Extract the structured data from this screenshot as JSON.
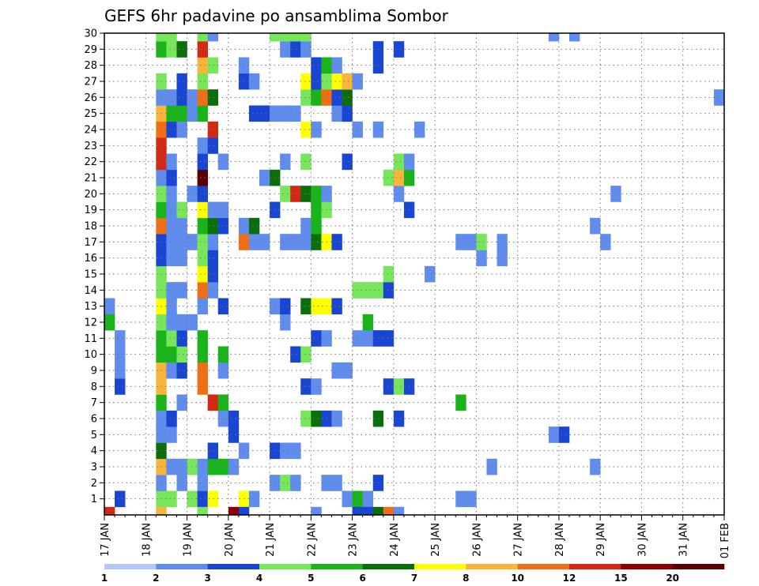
{
  "chart_data": {
    "type": "heatmap",
    "title": "GEFS 6hr padavine po ansamblima Sombor",
    "xlabel": "",
    "ylabel": "",
    "x_ticks": [
      "17 JAN",
      "18 JAN",
      "19 JAN",
      "20 JAN",
      "21 JAN",
      "22 JAN",
      "23 JAN",
      "24 JAN",
      "25 JAN",
      "26 JAN",
      "27 JAN",
      "28 JAN",
      "29 JAN",
      "30 JAN",
      "31 JAN",
      "01 FEB"
    ],
    "y_ticks": [
      1,
      2,
      3,
      4,
      5,
      6,
      7,
      8,
      9,
      10,
      11,
      12,
      13,
      14,
      15,
      16,
      17,
      18,
      19,
      20,
      21,
      22,
      23,
      24,
      25,
      26,
      27,
      28,
      29,
      30
    ],
    "xlim": [
      0,
      60
    ],
    "ylim": [
      0,
      30
    ],
    "x_unit": "6-hour steps from 17 JAN 00Z",
    "grid": true,
    "colorbar": {
      "position": "bottom",
      "labels": [
        "1",
        "2",
        "3",
        "4",
        "5",
        "6",
        "7",
        "8",
        "10",
        "12",
        "15",
        "20"
      ],
      "colors": [
        "#b4c8f5",
        "#5f8ced",
        "#1846d2",
        "#78e65a",
        "#19b419",
        "#0a6e0a",
        "#ffff00",
        "#fab43c",
        "#f06e14",
        "#d22814",
        "#8c0000",
        "#5a0000"
      ]
    },
    "cells": [
      [
        1,
        1,
        2
      ],
      [
        5,
        1,
        3
      ],
      [
        6,
        1,
        3
      ],
      [
        8,
        1,
        3
      ],
      [
        9,
        1,
        2
      ],
      [
        10,
        1,
        6
      ],
      [
        13,
        1,
        6
      ],
      [
        14,
        1,
        1
      ],
      [
        23,
        1,
        1
      ],
      [
        24,
        1,
        4
      ],
      [
        25,
        1,
        1
      ],
      [
        34,
        1,
        1
      ],
      [
        35,
        1,
        1
      ],
      [
        5,
        2,
        1
      ],
      [
        7,
        2,
        1
      ],
      [
        9,
        2,
        1
      ],
      [
        16,
        2,
        1
      ],
      [
        17,
        2,
        3
      ],
      [
        18,
        2,
        1
      ],
      [
        21,
        2,
        1
      ],
      [
        22,
        2,
        1
      ],
      [
        26,
        2,
        2
      ],
      [
        5,
        3,
        7
      ],
      [
        6,
        3,
        1
      ],
      [
        7,
        3,
        1
      ],
      [
        8,
        3,
        3
      ],
      [
        9,
        3,
        1
      ],
      [
        10,
        3,
        4
      ],
      [
        11,
        3,
        4
      ],
      [
        12,
        3,
        1
      ],
      [
        37,
        3,
        1
      ],
      [
        47,
        3,
        1
      ],
      [
        5,
        4,
        5
      ],
      [
        10,
        4,
        2
      ],
      [
        13,
        4,
        1
      ],
      [
        16,
        4,
        2
      ],
      [
        17,
        4,
        1
      ],
      [
        18,
        4,
        1
      ],
      [
        5,
        5,
        1
      ],
      [
        6,
        5,
        1
      ],
      [
        12,
        5,
        2
      ],
      [
        43,
        5,
        1
      ],
      [
        44,
        5,
        2
      ],
      [
        5,
        6,
        1
      ],
      [
        6,
        6,
        2
      ],
      [
        11,
        6,
        1
      ],
      [
        12,
        6,
        2
      ],
      [
        19,
        6,
        3
      ],
      [
        20,
        6,
        5
      ],
      [
        21,
        6,
        2
      ],
      [
        22,
        6,
        1
      ],
      [
        26,
        6,
        5
      ],
      [
        28,
        6,
        2
      ],
      [
        5,
        7,
        4
      ],
      [
        7,
        7,
        1
      ],
      [
        10,
        7,
        9
      ],
      [
        11,
        7,
        4
      ],
      [
        34,
        7,
        4
      ],
      [
        1,
        8,
        2
      ],
      [
        5,
        8,
        7
      ],
      [
        9,
        8,
        8
      ],
      [
        19,
        8,
        2
      ],
      [
        20,
        8,
        1
      ],
      [
        27,
        8,
        2
      ],
      [
        28,
        8,
        3
      ],
      [
        29,
        8,
        2
      ],
      [
        1,
        9,
        1
      ],
      [
        5,
        9,
        7
      ],
      [
        6,
        9,
        1
      ],
      [
        7,
        9,
        2
      ],
      [
        9,
        9,
        8
      ],
      [
        11,
        9,
        1
      ],
      [
        22,
        9,
        1
      ],
      [
        23,
        9,
        1
      ],
      [
        1,
        10,
        1
      ],
      [
        5,
        10,
        4
      ],
      [
        6,
        10,
        4
      ],
      [
        7,
        10,
        3
      ],
      [
        9,
        10,
        4
      ],
      [
        11,
        10,
        4
      ],
      [
        18,
        10,
        2
      ],
      [
        19,
        10,
        3
      ],
      [
        1,
        11,
        1
      ],
      [
        5,
        11,
        4
      ],
      [
        6,
        11,
        3
      ],
      [
        7,
        11,
        2
      ],
      [
        9,
        11,
        4
      ],
      [
        20,
        11,
        2
      ],
      [
        21,
        11,
        1
      ],
      [
        24,
        11,
        1
      ],
      [
        25,
        11,
        1
      ],
      [
        26,
        11,
        2
      ],
      [
        27,
        11,
        2
      ],
      [
        0,
        12,
        4
      ],
      [
        5,
        12,
        3
      ],
      [
        6,
        12,
        1
      ],
      [
        7,
        12,
        1
      ],
      [
        8,
        12,
        1
      ],
      [
        17,
        12,
        1
      ],
      [
        25,
        12,
        4
      ],
      [
        0,
        13,
        1
      ],
      [
        5,
        13,
        6
      ],
      [
        6,
        13,
        1
      ],
      [
        9,
        13,
        1
      ],
      [
        11,
        13,
        2
      ],
      [
        16,
        13,
        1
      ],
      [
        17,
        13,
        2
      ],
      [
        19,
        13,
        5
      ],
      [
        20,
        13,
        6
      ],
      [
        21,
        13,
        6
      ],
      [
        22,
        13,
        2
      ],
      [
        5,
        14,
        3
      ],
      [
        6,
        14,
        1
      ],
      [
        7,
        14,
        1
      ],
      [
        9,
        14,
        8
      ],
      [
        10,
        14,
        1
      ],
      [
        24,
        14,
        3
      ],
      [
        25,
        14,
        3
      ],
      [
        26,
        14,
        3
      ],
      [
        27,
        14,
        2
      ],
      [
        5,
        15,
        3
      ],
      [
        9,
        15,
        6
      ],
      [
        10,
        15,
        2
      ],
      [
        27,
        15,
        3
      ],
      [
        31,
        15,
        1
      ],
      [
        5,
        16,
        2
      ],
      [
        6,
        16,
        1
      ],
      [
        7,
        16,
        1
      ],
      [
        9,
        16,
        3
      ],
      [
        10,
        16,
        2
      ],
      [
        36,
        16,
        1
      ],
      [
        38,
        16,
        1
      ],
      [
        5,
        17,
        2
      ],
      [
        6,
        17,
        1
      ],
      [
        7,
        17,
        1
      ],
      [
        8,
        17,
        1
      ],
      [
        9,
        17,
        3
      ],
      [
        10,
        17,
        1
      ],
      [
        13,
        17,
        8
      ],
      [
        14,
        17,
        1
      ],
      [
        15,
        17,
        1
      ],
      [
        17,
        17,
        1
      ],
      [
        18,
        17,
        1
      ],
      [
        19,
        17,
        1
      ],
      [
        20,
        17,
        5
      ],
      [
        21,
        17,
        6
      ],
      [
        22,
        17,
        2
      ],
      [
        34,
        17,
        1
      ],
      [
        35,
        17,
        1
      ],
      [
        36,
        17,
        3
      ],
      [
        38,
        17,
        1
      ],
      [
        48,
        17,
        1
      ],
      [
        5,
        18,
        8
      ],
      [
        6,
        18,
        1
      ],
      [
        7,
        18,
        1
      ],
      [
        9,
        18,
        4
      ],
      [
        10,
        18,
        5
      ],
      [
        11,
        18,
        2
      ],
      [
        13,
        18,
        1
      ],
      [
        14,
        18,
        5
      ],
      [
        19,
        18,
        1
      ],
      [
        20,
        18,
        4
      ],
      [
        47,
        18,
        1
      ],
      [
        5,
        19,
        4
      ],
      [
        6,
        19,
        1
      ],
      [
        7,
        19,
        3
      ],
      [
        9,
        19,
        6
      ],
      [
        10,
        19,
        1
      ],
      [
        11,
        19,
        1
      ],
      [
        16,
        19,
        2
      ],
      [
        20,
        19,
        4
      ],
      [
        21,
        19,
        3
      ],
      [
        29,
        19,
        2
      ],
      [
        5,
        20,
        3
      ],
      [
        6,
        20,
        1
      ],
      [
        8,
        20,
        1
      ],
      [
        9,
        20,
        2
      ],
      [
        17,
        20,
        3
      ],
      [
        18,
        20,
        9
      ],
      [
        19,
        20,
        5
      ],
      [
        20,
        20,
        4
      ],
      [
        21,
        20,
        1
      ],
      [
        28,
        20,
        1
      ],
      [
        49,
        20,
        1
      ],
      [
        5,
        21,
        1
      ],
      [
        6,
        21,
        2
      ],
      [
        9,
        21,
        11
      ],
      [
        15,
        21,
        1
      ],
      [
        16,
        21,
        5
      ],
      [
        27,
        21,
        3
      ],
      [
        28,
        21,
        7
      ],
      [
        29,
        21,
        4
      ],
      [
        5,
        22,
        9
      ],
      [
        6,
        22,
        1
      ],
      [
        9,
        22,
        2
      ],
      [
        11,
        22,
        1
      ],
      [
        17,
        22,
        1
      ],
      [
        19,
        22,
        3
      ],
      [
        23,
        22,
        2
      ],
      [
        28,
        22,
        3
      ],
      [
        29,
        22,
        1
      ],
      [
        5,
        23,
        9
      ],
      [
        9,
        23,
        1
      ],
      [
        10,
        23,
        2
      ],
      [
        5,
        24,
        8
      ],
      [
        6,
        24,
        2
      ],
      [
        7,
        24,
        1
      ],
      [
        10,
        24,
        9
      ],
      [
        19,
        24,
        6
      ],
      [
        20,
        24,
        1
      ],
      [
        24,
        24,
        1
      ],
      [
        26,
        24,
        1
      ],
      [
        30,
        24,
        1
      ],
      [
        5,
        25,
        7
      ],
      [
        6,
        25,
        4
      ],
      [
        7,
        25,
        4
      ],
      [
        8,
        25,
        1
      ],
      [
        9,
        25,
        4
      ],
      [
        14,
        25,
        2
      ],
      [
        15,
        25,
        2
      ],
      [
        16,
        25,
        1
      ],
      [
        17,
        25,
        1
      ],
      [
        18,
        25,
        1
      ],
      [
        22,
        25,
        1
      ],
      [
        23,
        25,
        2
      ],
      [
        5,
        26,
        1
      ],
      [
        6,
        26,
        1
      ],
      [
        7,
        26,
        2
      ],
      [
        8,
        26,
        1
      ],
      [
        9,
        26,
        8
      ],
      [
        10,
        26,
        5
      ],
      [
        19,
        26,
        3
      ],
      [
        20,
        26,
        4
      ],
      [
        21,
        26,
        8
      ],
      [
        22,
        26,
        2
      ],
      [
        23,
        26,
        5
      ],
      [
        59,
        26,
        1
      ],
      [
        5,
        27,
        3
      ],
      [
        7,
        27,
        2
      ],
      [
        9,
        27,
        3
      ],
      [
        13,
        27,
        2
      ],
      [
        14,
        27,
        1
      ],
      [
        19,
        27,
        6
      ],
      [
        20,
        27,
        2
      ],
      [
        21,
        27,
        3
      ],
      [
        22,
        27,
        6
      ],
      [
        23,
        27,
        7
      ],
      [
        24,
        27,
        1
      ],
      [
        9,
        28,
        7
      ],
      [
        10,
        28,
        3
      ],
      [
        13,
        28,
        1
      ],
      [
        20,
        28,
        2
      ],
      [
        21,
        28,
        4
      ],
      [
        22,
        28,
        1
      ],
      [
        26,
        28,
        2
      ],
      [
        5,
        29,
        4
      ],
      [
        6,
        29,
        3
      ],
      [
        7,
        29,
        5
      ],
      [
        9,
        29,
        9
      ],
      [
        17,
        29,
        1
      ],
      [
        18,
        29,
        2
      ],
      [
        19,
        29,
        1
      ],
      [
        26,
        29,
        2
      ],
      [
        28,
        29,
        2
      ],
      [
        5,
        30,
        3
      ],
      [
        6,
        30,
        3
      ],
      [
        9,
        30,
        3
      ],
      [
        10,
        30,
        1
      ],
      [
        16,
        30,
        3
      ],
      [
        17,
        30,
        3
      ],
      [
        18,
        30,
        3
      ],
      [
        19,
        30,
        3
      ],
      [
        43,
        30,
        1
      ],
      [
        45,
        30,
        1
      ],
      [
        0,
        0,
        9
      ],
      [
        5,
        0,
        7
      ],
      [
        9,
        0,
        3
      ],
      [
        12,
        0,
        10
      ],
      [
        13,
        0,
        2
      ],
      [
        20,
        0,
        1
      ],
      [
        24,
        0,
        2
      ],
      [
        25,
        0,
        2
      ],
      [
        26,
        0,
        5
      ],
      [
        27,
        0,
        8
      ],
      [
        28,
        0,
        1
      ]
    ]
  }
}
